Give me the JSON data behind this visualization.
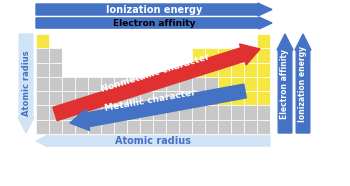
{
  "bg_color": "#ffffff",
  "table_bg": "#d0d0d0",
  "yellow_color": "#f5e642",
  "orange_color": "#f0a070",
  "gray_color": "#c8c8c8",
  "blue_arrow_color": "#4472c4",
  "red_arrow_color": "#e03030",
  "white_arrow_color": "#d0e4f5",
  "top_arrow1_label": "Ionization energy",
  "top_arrow2_label": "Electron affinity",
  "left_arrow_label": "Atomic radius",
  "bottom_arrow_label": "Atomic radius",
  "right_arrow1_label": "Electron affinity",
  "right_arrow2_label": "Ionization energy",
  "diag_red_label": "Nonmetallic character",
  "diag_blue_label": "Metallic character"
}
